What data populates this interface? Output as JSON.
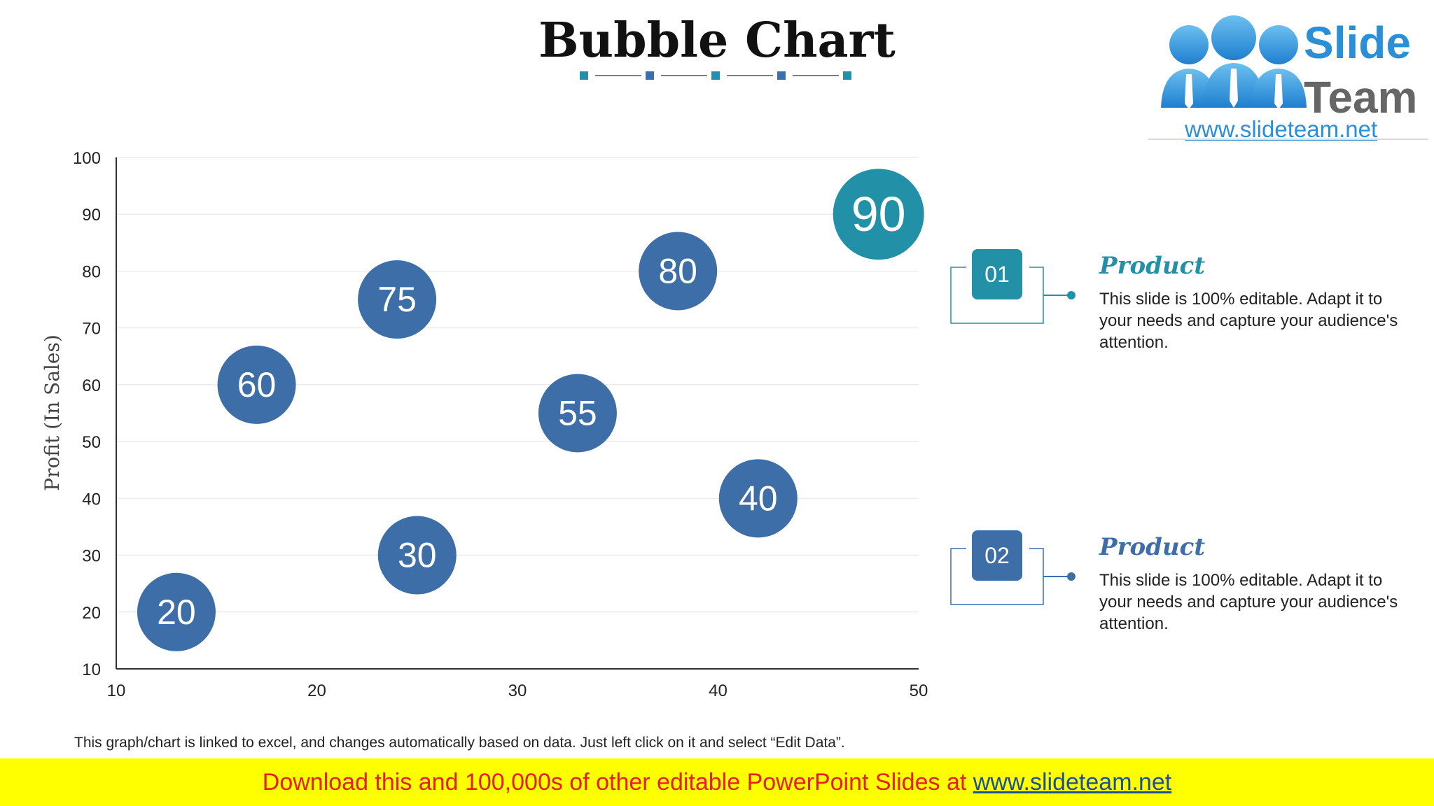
{
  "header": {
    "title": "Bubble Chart"
  },
  "logo": {
    "line1": "Slide",
    "line2": "Team",
    "url": "www.slideteam.net"
  },
  "chart_data": {
    "type": "scatter",
    "xlabel": "",
    "ylabel": "Profit  (In Sales)",
    "xlim": [
      10,
      50
    ],
    "ylim": [
      10,
      100
    ],
    "x_ticks": [
      10,
      20,
      30,
      40,
      50
    ],
    "y_ticks": [
      10,
      20,
      30,
      40,
      50,
      60,
      70,
      80,
      90,
      100
    ],
    "grid": "horizontal",
    "points": [
      {
        "x": 13,
        "y": 20,
        "label": "20",
        "color": "#3d6ea7"
      },
      {
        "x": 17,
        "y": 60,
        "label": "60",
        "color": "#3d6ea7"
      },
      {
        "x": 24,
        "y": 75,
        "label": "75",
        "color": "#3d6ea7"
      },
      {
        "x": 25,
        "y": 30,
        "label": "30",
        "color": "#3d6ea7"
      },
      {
        "x": 33,
        "y": 55,
        "label": "55",
        "color": "#3d6ea7"
      },
      {
        "x": 38,
        "y": 80,
        "label": "80",
        "color": "#3d6ea7"
      },
      {
        "x": 42,
        "y": 40,
        "label": "40",
        "color": "#3d6ea7"
      },
      {
        "x": 48,
        "y": 90,
        "label": "90",
        "color": "#2290a6"
      }
    ]
  },
  "callouts": [
    {
      "number": "01",
      "label": "Product",
      "text": "This slide is 100% editable. Adapt it to your needs and capture your audience's attention.",
      "color": "#2290a6"
    },
    {
      "number": "02",
      "label": "Product",
      "text": "This slide is 100% editable. Adapt it to your needs and capture your audience's attention.",
      "color": "#3d6ea7"
    }
  ],
  "footer": {
    "note": "This graph/chart is linked to excel, and changes automatically based on data. Just left click on it and select “Edit Data”.",
    "banner_text": "Download this and 100,000s of other editable PowerPoint Slides at ",
    "banner_link": "www.slideteam.net"
  },
  "colors": {
    "teal": "#2290a6",
    "blue": "#3d6ea7"
  }
}
